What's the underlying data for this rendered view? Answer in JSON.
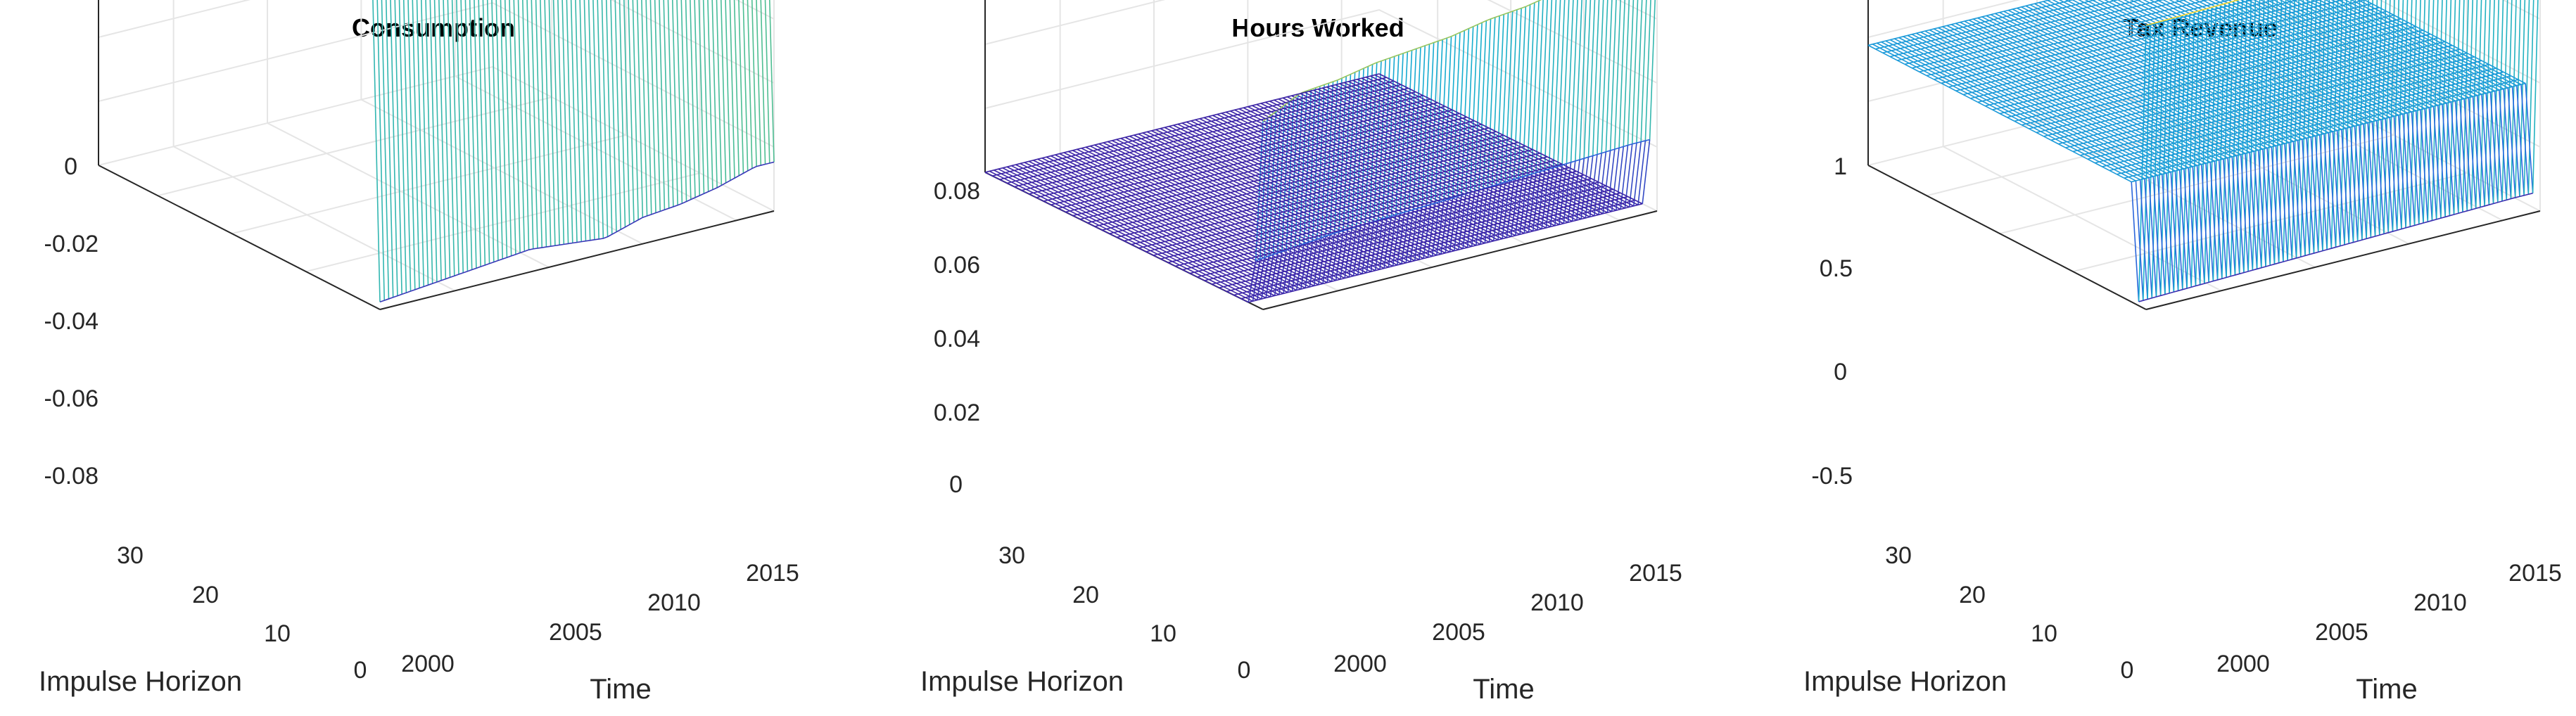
{
  "figure": {
    "panels": [
      {
        "key": "consumption",
        "title": "Consumption",
        "xlabel": "Time",
        "ylabel": "Impulse Horizon",
        "x_ticks": [
          "2000",
          "2005",
          "2010",
          "2015"
        ],
        "y_ticks": [
          "0",
          "10",
          "20",
          "30"
        ],
        "z_ticks": [
          "0",
          "-0.02",
          "-0.04",
          "-0.06",
          "-0.08"
        ]
      },
      {
        "key": "hours",
        "title": "Hours Worked",
        "xlabel": "Time",
        "ylabel": "Impulse Horizon",
        "x_ticks": [
          "2000",
          "2005",
          "2010",
          "2015"
        ],
        "y_ticks": [
          "0",
          "10",
          "20",
          "30"
        ],
        "z_ticks": [
          "0",
          "0.02",
          "0.04",
          "0.06",
          "0.08"
        ]
      },
      {
        "key": "tax",
        "title": "Tax Revenue",
        "xlabel": "Time",
        "ylabel": "Impulse Horizon",
        "x_ticks": [
          "2000",
          "2005",
          "2010",
          "2015"
        ],
        "y_ticks": [
          "0",
          "10",
          "20",
          "30"
        ],
        "z_ticks": [
          "1",
          "0.5",
          "0",
          "-0.5"
        ]
      }
    ]
  },
  "chart_data": [
    {
      "type": "surface",
      "title": "Consumption",
      "xlabel": "Time",
      "ylabel": "Impulse Horizon",
      "xlim": [
        1996,
        2017
      ],
      "ylim": [
        0,
        38
      ],
      "zlim": [
        -0.085,
        0
      ],
      "grid": true,
      "colormap": "parula",
      "impact_response_by_time": {
        "x": [
          1996,
          1998,
          2000,
          2002,
          2004,
          2006,
          2008,
          2010,
          2012,
          2014,
          2016
        ],
        "z": [
          -0.083,
          -0.082,
          -0.081,
          -0.08,
          -0.079,
          -0.08,
          -0.081,
          -0.078,
          -0.077,
          -0.075,
          -0.072
        ]
      },
      "later_horizons_value": 0
    },
    {
      "type": "surface",
      "title": "Hours Worked",
      "xlabel": "Time",
      "ylabel": "Impulse Horizon",
      "xlim": [
        1996,
        2017
      ],
      "ylim": [
        0,
        38
      ],
      "zlim": [
        0,
        0.085
      ],
      "grid": true,
      "colormap": "parula",
      "impact_response_by_time": {
        "x": [
          1996,
          1998,
          2000,
          2002,
          2004,
          2006,
          2008,
          2010,
          2012,
          2014,
          2016
        ],
        "z": [
          0.05,
          0.055,
          0.056,
          0.058,
          0.059,
          0.06,
          0.062,
          0.063,
          0.065,
          0.067,
          0.07
        ]
      },
      "horizon_1_response_by_time": {
        "x": [
          1996,
          2000,
          2004,
          2008,
          2012,
          2016
        ],
        "z": [
          0.012,
          0.014,
          0.015,
          0.016,
          0.017,
          0.018
        ]
      },
      "later_horizons_value": 0
    },
    {
      "type": "surface",
      "title": "Tax Revenue",
      "xlabel": "Time",
      "ylabel": "Impulse Horizon",
      "xlim": [
        1996,
        2017
      ],
      "ylim": [
        0,
        38
      ],
      "zlim": [
        -0.6,
        1
      ],
      "grid": true,
      "colormap": "parula",
      "impact_response_by_time": {
        "x": [
          1996,
          2000,
          2004,
          2008,
          2012,
          2016
        ],
        "z": [
          0.82,
          0.83,
          0.84,
          0.85,
          0.86,
          0.87
        ]
      },
      "horizon_1_response_by_time": {
        "x": [
          1996,
          2000,
          2004,
          2008,
          2012,
          2016
        ],
        "z": [
          -0.58,
          -0.57,
          -0.56,
          -0.55,
          -0.54,
          -0.53
        ]
      },
      "later_horizons_value": 0
    }
  ]
}
